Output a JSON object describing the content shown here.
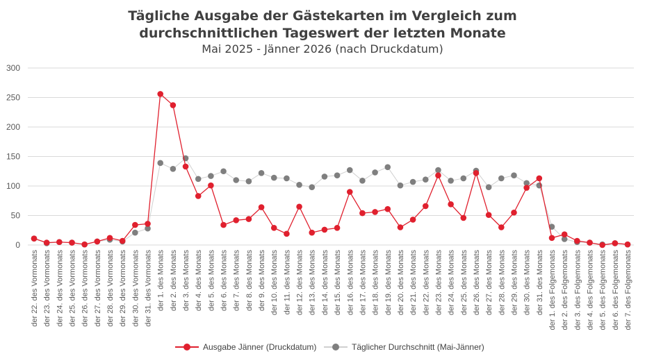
{
  "chart_data": {
    "type": "line",
    "title": "Tägliche Ausgabe der Gästekarten im Vergleich zum durchschnittlichen Tageswert der letzten Monate",
    "title_line1": "Tägliche Ausgabe der Gästekarten im Vergleich zum",
    "title_line2": "durchschnittlichen Tageswert der letzten Monate",
    "subtitle": "Mai 2025 - Jänner 2026 (nach Druckdatum)",
    "xlabel": "",
    "ylabel": "",
    "ylim": [
      0,
      300
    ],
    "yticks": [
      "0",
      "50",
      "100",
      "150",
      "200",
      "250",
      "300"
    ],
    "grid": true,
    "legend_position": "bottom",
    "categories": [
      "der 22. des Vormonats",
      "der 23. des Vormonats",
      "der 24. des Vormonats",
      "der 25. des Vormonats",
      "der 26. des Vormonats",
      "der 27. des Vormonats",
      "der 28. des Vormonats",
      "der 29. des Vormonats",
      "der 30. des Vormonats",
      "der 31. des Vormonats",
      "der 1. des Monats",
      "der 2. des Monats",
      "der 3. des Monats",
      "der 4. des Monats",
      "der 5. des Monats",
      "der 6. des Monats",
      "der 7. des Monats",
      "der 8. des Monats",
      "der 9. des Monats",
      "der 10. des Monats",
      "der 11. des Monats",
      "der 12. des Monats",
      "der 13. des Monats",
      "der 14. des Monats",
      "der 15. des Monats",
      "der 16. des Monats",
      "der 17. des Monats",
      "der 18. des Monats",
      "der 19. des Monats",
      "der 20. des Monats",
      "der 21. des Monats",
      "der 22. des Monats",
      "der 23. des Monats",
      "der 24. des Monats",
      "der 25. des Monats",
      "der 26. des Monats",
      "der 27. des Monats",
      "der 28. des Monats",
      "der 29. des Monats",
      "der 30. des Monats",
      "der 31. des Monats",
      "der 1. des Folgemonats",
      "der 2. des Folgemonats",
      "der 3. des Folgemonats",
      "der 4. des Folgemonats",
      "der 5. des Folgemonats",
      "der 6. des Folgemonats",
      "der 7. des Folgemonats"
    ],
    "series": [
      {
        "name": "Täglicher Durchschnitt (Mai-Jänner)",
        "color": "#7f7f7f",
        "line_color": "#d0d0d0",
        "values": [
          11,
          3,
          5,
          4,
          1,
          6,
          9,
          6,
          21,
          28,
          139,
          129,
          147,
          112,
          117,
          125,
          110,
          108,
          122,
          114,
          113,
          102,
          98,
          116,
          118,
          127,
          109,
          123,
          132,
          101,
          107,
          111,
          127,
          109,
          113,
          126,
          98,
          113,
          118,
          105,
          101,
          31,
          10,
          5,
          4,
          1,
          3,
          1
        ]
      },
      {
        "name": "Ausgabe Jänner (Druckdatum)",
        "color": "#e0202e",
        "line_color": "#e0202e",
        "values": [
          11,
          4,
          5,
          4,
          1,
          6,
          12,
          7,
          34,
          36,
          256,
          237,
          133,
          83,
          101,
          34,
          42,
          44,
          64,
          29,
          19,
          65,
          21,
          26,
          29,
          90,
          54,
          56,
          61,
          30,
          43,
          66,
          118,
          69,
          46,
          122,
          51,
          30,
          55,
          97,
          113,
          12,
          18,
          7,
          4,
          0,
          3,
          1
        ]
      }
    ],
    "legend": [
      "Ausgabe Jänner (Druckdatum)",
      "Täglicher Durchschnitt (Mai-Jänner)"
    ]
  }
}
